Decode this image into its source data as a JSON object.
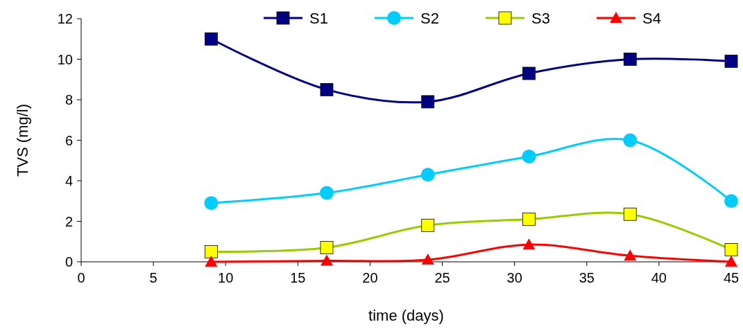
{
  "chart_data": {
    "type": "line",
    "xlabel": "time (days)",
    "ylabel": "TVS (mg/l)",
    "x": [
      9,
      17,
      24,
      31,
      38,
      45
    ],
    "series": [
      {
        "name": "S1",
        "color": "#000080",
        "marker": "square",
        "values": [
          11.0,
          8.5,
          7.9,
          9.3,
          10.0,
          9.9
        ]
      },
      {
        "name": "S2",
        "color": "#00ccff",
        "marker": "circle",
        "values": [
          2.9,
          3.4,
          4.3,
          5.2,
          6.0,
          3.0
        ]
      },
      {
        "name": "S3",
        "color": "#99cc00",
        "marker": "square",
        "values": [
          0.5,
          0.7,
          1.8,
          2.1,
          2.35,
          0.6
        ]
      },
      {
        "name": "S4",
        "color": "#ff0000",
        "marker": "triangle",
        "values": [
          0,
          0.05,
          0.1,
          0.85,
          0.3,
          0
        ]
      }
    ],
    "xlim": [
      0,
      45
    ],
    "xticks": [
      0,
      5,
      10,
      15,
      20,
      25,
      30,
      35,
      40,
      45
    ],
    "ylim": [
      0,
      12
    ],
    "yticks": [
      0,
      2,
      4,
      6,
      8,
      10,
      12
    ],
    "grid": false,
    "legend": "top",
    "line_style": "solid"
  }
}
